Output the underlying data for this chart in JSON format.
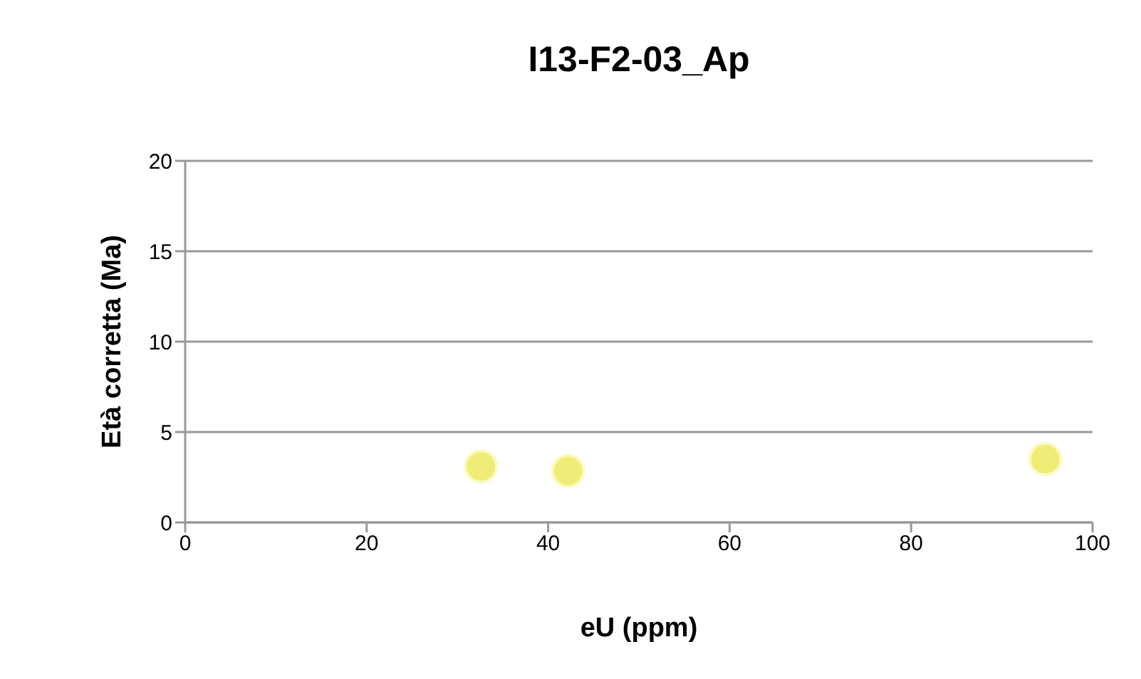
{
  "chart_data": {
    "type": "scatter",
    "title": "I13-F2-03_Ap",
    "xlabel": "eU (ppm)",
    "ylabel": "Età corretta (Ma)",
    "x": [
      32.6,
      42.2,
      94.8
    ],
    "series": [
      {
        "color": "#f0ec78",
        "values": [
          3.1,
          2.85,
          3.5
        ]
      }
    ],
    "xlim": [
      0,
      100
    ],
    "xticks": [
      0,
      20,
      40,
      60,
      80,
      100
    ],
    "ylim": [
      0,
      20
    ],
    "yticks": [
      0,
      5,
      10,
      15,
      20
    ],
    "grid": "y",
    "marker": "circle",
    "legend": false
  }
}
